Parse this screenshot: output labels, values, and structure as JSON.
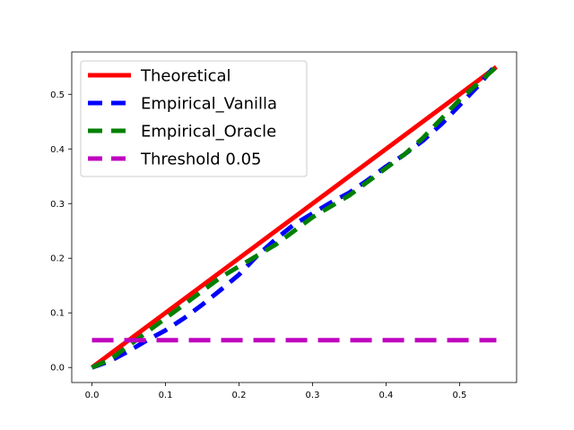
{
  "chart_data": {
    "type": "line",
    "title": "",
    "xlabel": "",
    "ylabel": "",
    "xlim": [
      -0.0275,
      0.5775
    ],
    "ylim": [
      -0.0275,
      0.5775
    ],
    "xticks": [
      0.0,
      0.1,
      0.2,
      0.3,
      0.4,
      0.5
    ],
    "yticks": [
      0.0,
      0.1,
      0.2,
      0.3,
      0.4,
      0.5
    ],
    "xtick_labels": [
      "0.0",
      "0.1",
      "0.2",
      "0.3",
      "0.4",
      "0.5"
    ],
    "ytick_labels": [
      "0.0",
      "0.1",
      "0.2",
      "0.3",
      "0.4",
      "0.5"
    ],
    "grid": false,
    "legend_position": "top-left",
    "series": [
      {
        "name": "Theoretical",
        "color": "#ff0000",
        "style": "solid",
        "x": [
          0.0,
          0.55
        ],
        "y": [
          0.0,
          0.55
        ]
      },
      {
        "name": "Empirical_Vanilla",
        "color": "#0000ff",
        "style": "dashed",
        "x": [
          0.0,
          0.025,
          0.05,
          0.075,
          0.1,
          0.125,
          0.15,
          0.175,
          0.2,
          0.225,
          0.25,
          0.275,
          0.3,
          0.325,
          0.35,
          0.375,
          0.4,
          0.425,
          0.45,
          0.475,
          0.5,
          0.525,
          0.55
        ],
        "y": [
          0.0,
          0.012,
          0.03,
          0.05,
          0.068,
          0.09,
          0.115,
          0.142,
          0.17,
          0.205,
          0.235,
          0.262,
          0.282,
          0.302,
          0.32,
          0.343,
          0.368,
          0.39,
          0.415,
          0.445,
          0.48,
          0.515,
          0.555
        ]
      },
      {
        "name": "Empirical_Oracle",
        "color": "#008000",
        "style": "dashed",
        "x": [
          0.0,
          0.025,
          0.05,
          0.075,
          0.1,
          0.125,
          0.15,
          0.175,
          0.2,
          0.225,
          0.25,
          0.275,
          0.3,
          0.325,
          0.35,
          0.375,
          0.4,
          0.425,
          0.45,
          0.475,
          0.5,
          0.525,
          0.55
        ],
        "y": [
          0.0,
          0.015,
          0.04,
          0.065,
          0.09,
          0.115,
          0.14,
          0.165,
          0.185,
          0.205,
          0.225,
          0.25,
          0.275,
          0.295,
          0.315,
          0.34,
          0.365,
          0.39,
          0.42,
          0.455,
          0.49,
          0.52,
          0.55
        ]
      },
      {
        "name": "Threshold 0.05",
        "color": "#bf00bf",
        "style": "dashed",
        "x": [
          0.0,
          0.55
        ],
        "y": [
          0.05,
          0.05
        ]
      }
    ]
  }
}
